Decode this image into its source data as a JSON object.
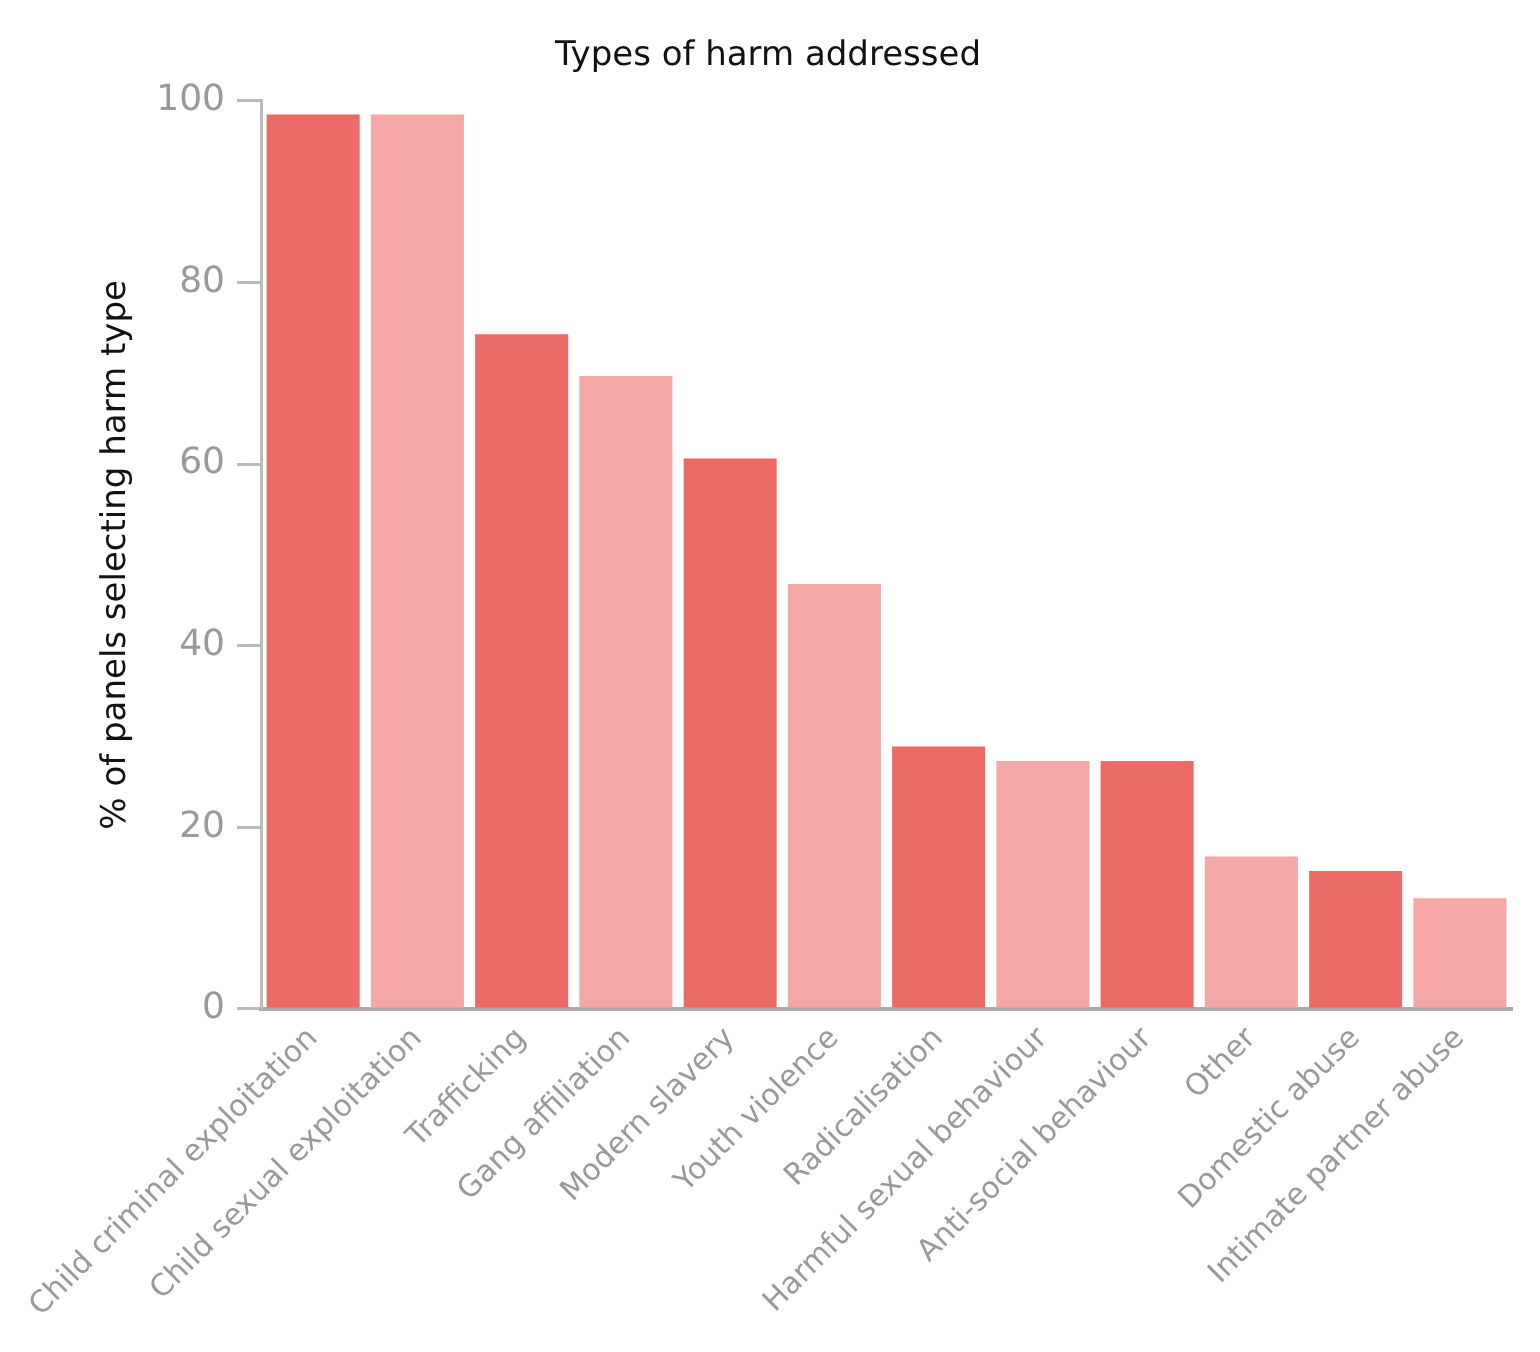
{
  "chart_data": {
    "type": "bar",
    "title": "Types of harm addressed",
    "ylabel": "% of panels selecting harm type",
    "categories": [
      "Child criminal exploitation",
      "Child sexual exploitation",
      "Trafficking",
      "Gang affiliation",
      "Modern slavery",
      "Youth violence",
      "Radicalisation",
      "Harmful sexual behaviour",
      "Anti-social behaviour",
      "Other",
      "Domestic abuse",
      "Intimate partner abuse"
    ],
    "values": [
      98.5,
      98.5,
      74.3,
      69.7,
      60.6,
      46.8,
      28.9,
      27.3,
      27.3,
      16.8,
      15.2,
      12.2
    ],
    "colors": [
      "#ec6b66",
      "#f4a7a4",
      "#ec6b66",
      "#f4a7a4",
      "#ec6b66",
      "#f4a7a4",
      "#ec6b66",
      "#f4a7a4",
      "#ec6b66",
      "#f4a7a4",
      "#ec6b66",
      "#f4a7a4"
    ],
    "ylim": [
      0,
      100
    ],
    "yticks": [
      0,
      20,
      40,
      60,
      80,
      100
    ],
    "grid": false,
    "legend": false
  }
}
